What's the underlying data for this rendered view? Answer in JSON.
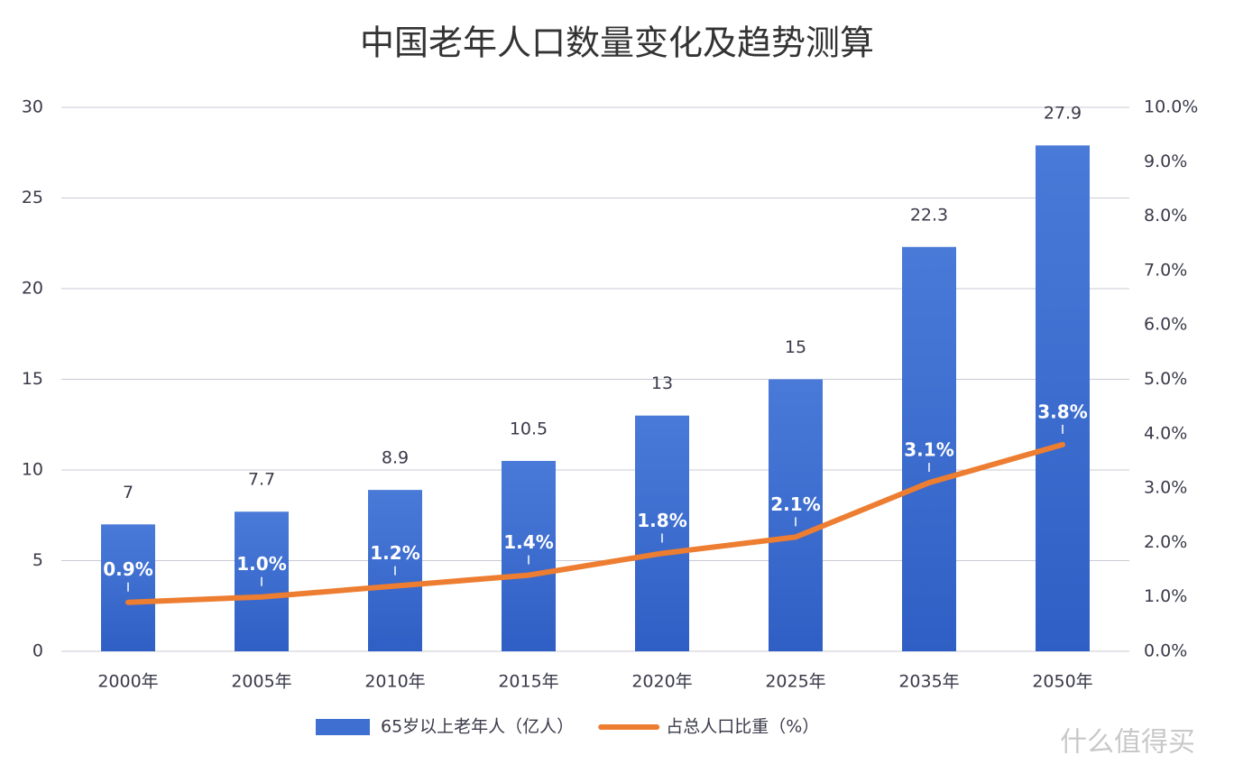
{
  "chart_data": {
    "type": "bar",
    "title": "中国老年人口数量变化及趋势测算",
    "categories": [
      "2000年",
      "2005年",
      "2010年",
      "2015年",
      "2020年",
      "2025年",
      "2035年",
      "2050年"
    ],
    "series": [
      {
        "name": "65岁以上老年人（亿人）",
        "type": "bar",
        "color": "#3f6fd1",
        "values": [
          7,
          7.7,
          8.9,
          10.5,
          13,
          15,
          22.3,
          27.9
        ]
      },
      {
        "name": "占总人口比重（%）",
        "type": "line",
        "color": "#ed7d31",
        "axis": "y2",
        "values": [
          0.9,
          1.0,
          1.2,
          1.4,
          1.8,
          2.1,
          3.1,
          3.8
        ],
        "value_labels": [
          "0.9%",
          "1.0%",
          "1.2%",
          "1.4%",
          "1.8%",
          "2.1%",
          "3.1%",
          "3.8%"
        ]
      }
    ],
    "ylim": [
      0,
      30
    ],
    "yticks": [
      0,
      5,
      10,
      15,
      20,
      25,
      30
    ],
    "y2lim": [
      0,
      10
    ],
    "y2ticks": [
      {
        "value": 0,
        "label": "0.0%"
      },
      {
        "value": 1,
        "label": "1.0%"
      },
      {
        "value": 2,
        "label": "2.0%"
      },
      {
        "value": 3,
        "label": "3.0%"
      },
      {
        "value": 4,
        "label": "4.0%"
      },
      {
        "value": 5,
        "label": "5.0%"
      },
      {
        "value": 6,
        "label": "6.0%"
      },
      {
        "value": 7,
        "label": "7.0%"
      },
      {
        "value": 8,
        "label": "8.0%"
      },
      {
        "value": 9,
        "label": "9.0%"
      },
      {
        "value": 10,
        "label": "10.0%"
      }
    ],
    "grid": true,
    "legend": "bottom",
    "watermark": "什么值得买"
  }
}
